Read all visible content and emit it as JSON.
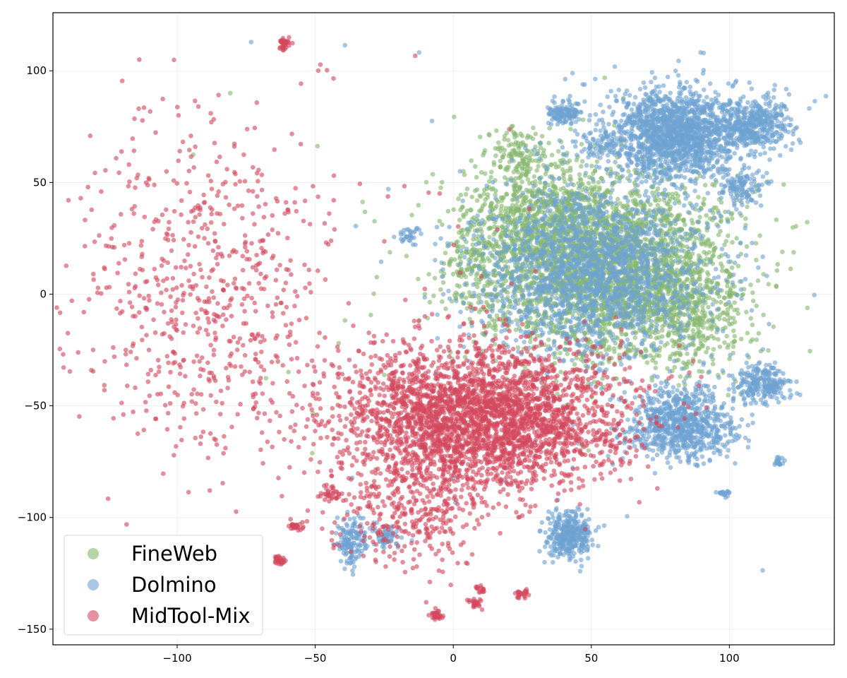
{
  "chart_data": {
    "type": "scatter",
    "title": "",
    "xlabel": "",
    "ylabel": "",
    "xlim": [
      -145,
      138
    ],
    "ylim": [
      -157,
      126
    ],
    "xticks": [
      -100,
      -50,
      0,
      50,
      100
    ],
    "yticks": [
      -150,
      -100,
      -50,
      0,
      50,
      100
    ],
    "xtick_labels": [
      "−100",
      "−50",
      "0",
      "50",
      "100"
    ],
    "ytick_labels": [
      "−150",
      "−100",
      "−50",
      "0",
      "50",
      "100"
    ],
    "grid": true,
    "legend_position": "bottom-left",
    "series": [
      {
        "name": "FineWeb",
        "color": "#86b86f",
        "clusters": [
          {
            "cx": 55,
            "cy": 12,
            "sx": 22,
            "sy": 20,
            "n": 3200
          },
          {
            "cx": 32,
            "cy": 38,
            "sx": 12,
            "sy": 12,
            "n": 450
          },
          {
            "cx": 25,
            "cy": 62,
            "sx": 6,
            "sy": 6,
            "n": 120
          },
          {
            "cx": 85,
            "cy": -8,
            "sx": 10,
            "sy": 12,
            "n": 300
          },
          {
            "cx": 10,
            "cy": 15,
            "sx": 8,
            "sy": 12,
            "n": 200
          },
          {
            "cx": 30,
            "cy": 15,
            "sx": 50,
            "sy": 45,
            "n": 70
          }
        ]
      },
      {
        "name": "Dolmino",
        "color": "#6fa3d2",
        "clusters": [
          {
            "cx": 80,
            "cy": 72,
            "sx": 12,
            "sy": 10,
            "n": 1600
          },
          {
            "cx": 108,
            "cy": 76,
            "sx": 7,
            "sy": 6,
            "n": 400
          },
          {
            "cx": 40,
            "cy": 81,
            "sx": 3,
            "sy": 2.5,
            "n": 120
          },
          {
            "cx": 52,
            "cy": 66,
            "sx": 4,
            "sy": 4,
            "n": 60
          },
          {
            "cx": 104,
            "cy": 48,
            "sx": 4,
            "sy": 4,
            "n": 120
          },
          {
            "cx": 50,
            "cy": 10,
            "sx": 20,
            "sy": 18,
            "n": 1800
          },
          {
            "cx": 82,
            "cy": -58,
            "sx": 10,
            "sy": 8,
            "n": 800
          },
          {
            "cx": 112,
            "cy": -40,
            "sx": 5,
            "sy": 4,
            "n": 250
          },
          {
            "cx": 42,
            "cy": -108,
            "sx": 4,
            "sy": 5,
            "n": 350
          },
          {
            "cx": -37,
            "cy": -110,
            "sx": 3,
            "sy": 6,
            "n": 140
          },
          {
            "cx": -24,
            "cy": -108,
            "sx": 3,
            "sy": 3,
            "n": 60
          },
          {
            "cx": 118,
            "cy": -75,
            "sx": 1,
            "sy": 1,
            "n": 20
          },
          {
            "cx": 98,
            "cy": -89,
            "sx": 1,
            "sy": 1,
            "n": 20
          },
          {
            "cx": -16,
            "cy": 26,
            "sx": 2,
            "sy": 2,
            "n": 30
          },
          {
            "cx": 50,
            "cy": 20,
            "sx": 45,
            "sy": 60,
            "n": 120
          }
        ]
      },
      {
        "name": "MidTool-Mix",
        "color": "#d4485e",
        "clusters": [
          {
            "cx": 10,
            "cy": -55,
            "sx": 26,
            "sy": 16,
            "n": 3200
          },
          {
            "cx": -14,
            "cy": -95,
            "sx": 14,
            "sy": 14,
            "n": 350
          },
          {
            "cx": -92,
            "cy": 0,
            "sx": 24,
            "sy": 38,
            "n": 650
          },
          {
            "cx": -61,
            "cy": 112,
            "sx": 1.2,
            "sy": 1.2,
            "n": 40
          },
          {
            "cx": -57,
            "cy": -104,
            "sx": 1.2,
            "sy": 1,
            "n": 30
          },
          {
            "cx": -63,
            "cy": -119,
            "sx": 1.2,
            "sy": 1,
            "n": 30
          },
          {
            "cx": -6,
            "cy": -144,
            "sx": 1.2,
            "sy": 1,
            "n": 30
          },
          {
            "cx": 8,
            "cy": -138,
            "sx": 1.2,
            "sy": 1,
            "n": 25
          },
          {
            "cx": 25,
            "cy": -134,
            "sx": 1.2,
            "sy": 1,
            "n": 25
          },
          {
            "cx": 10,
            "cy": -132,
            "sx": 1,
            "sy": 1,
            "n": 15
          },
          {
            "cx": -45,
            "cy": -90,
            "sx": 2,
            "sy": 2,
            "n": 30
          },
          {
            "cx": -30,
            "cy": 0,
            "sx": 35,
            "sy": 40,
            "n": 60
          }
        ]
      }
    ]
  }
}
